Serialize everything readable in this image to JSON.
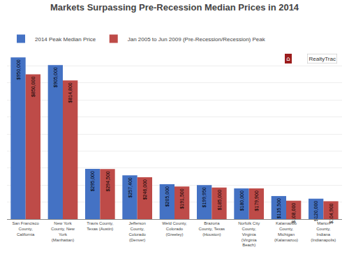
{
  "chart_data": {
    "type": "bar",
    "title": "Markets Surpassing Pre-Recession Median Prices in 2014",
    "categories": [
      "San Francisco\nCounty,\nCalifornia",
      "New York\nCounty, New\nYork\n(Manhattan)",
      "Travis County,\nTexas (Austin)",
      "Jefferson\nCounty,\nColorado\n(Denver)",
      "Weld County,\nColorado\n(Greeley)",
      "Brazoria\nCounty, Texas\n(Houston)",
      "Norfolk City\nCounty,\nVirginia\n(Virginia\nBeach)",
      "Kalamazoo\nCounty,\nMichigan\n(Kalamazoo)",
      "Marion\nCounty,\nIndiana\n(Indianapolis)"
    ],
    "series": [
      {
        "name": "2014 Peak Median Price",
        "color": "#4472C4",
        "values": [
          950000,
          905000,
          295000,
          257400,
          205000,
          199950,
          180000,
          135500,
          120000
        ],
        "value_labels": [
          "$950,000",
          "$905,000",
          "$295,000",
          "$257,400",
          "$205,000",
          "$199,950",
          "$180,000",
          "$135,500",
          "$120,000"
        ]
      },
      {
        "name": "Jan 2005 to Jun 2009 (Pre-Recession/Recession) Peak",
        "color": "#BE4B48",
        "values": [
          850000,
          814800,
          294500,
          246000,
          191500,
          185000,
          179900,
          108000,
          104900
        ],
        "value_labels": [
          "$850,000",
          "$814,800",
          "$294,500",
          "$246,000",
          "$191,500",
          "$185,000",
          "$179,900",
          "$108,000",
          "$104,900"
        ]
      }
    ],
    "ylim": [
      0,
      1000000
    ],
    "yticks": [
      0,
      100000,
      200000,
      300000,
      400000,
      500000,
      600000,
      700000,
      800000,
      900000,
      1000000
    ],
    "grid": true,
    "legend": "upper left",
    "data_labels": true,
    "tick_labels": "x",
    "annotations": [
      "⌂",
      "RealtyTrac"
    ]
  }
}
